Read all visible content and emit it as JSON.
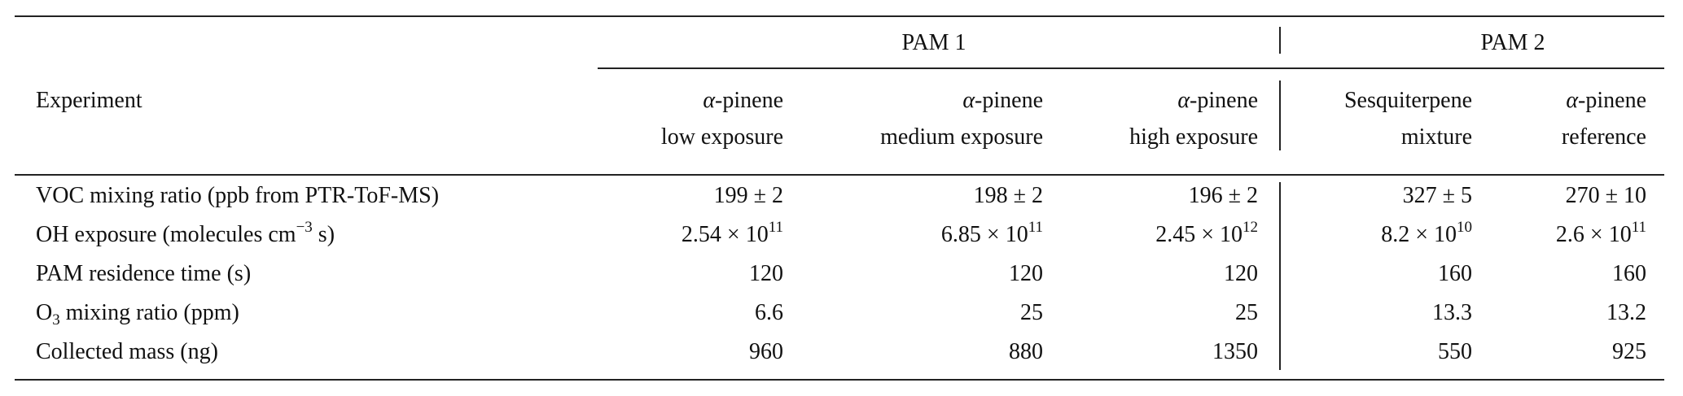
{
  "table": {
    "groups": [
      {
        "label": "PAM 1"
      },
      {
        "label": "PAM 2"
      }
    ],
    "stub_header": "Experiment",
    "columns": [
      {
        "greek": "α",
        "line1": "-pinene",
        "line2": "low exposure"
      },
      {
        "greek": "α",
        "line1": "-pinene",
        "line2": "medium exposure"
      },
      {
        "greek": "α",
        "line1": "-pinene",
        "line2": "high exposure"
      },
      {
        "greek": "",
        "line1": "Sesquiterpene",
        "line2": "mixture"
      },
      {
        "greek": "α",
        "line1": "-pinene",
        "line2": "reference"
      }
    ],
    "rows": [
      {
        "label": "VOC mixing ratio (ppb from PTR-ToF-MS)",
        "values": [
          "199 ± 2",
          "198 ± 2",
          "196 ± 2",
          "327 ± 5",
          "270 ± 10"
        ]
      },
      {
        "label": "OH exposure (molecules cm",
        "label_sup": "−3",
        "label_tail": " s)",
        "values": [
          {
            "m": "2.54 × 10",
            "e": "11"
          },
          {
            "m": "6.85 × 10",
            "e": "11"
          },
          {
            "m": "2.45 × 10",
            "e": "12"
          },
          {
            "m": "8.2 × 10",
            "e": "10"
          },
          {
            "m": "2.6 × 10",
            "e": "11"
          }
        ]
      },
      {
        "label": "PAM residence time (s)",
        "values": [
          "120",
          "120",
          "120",
          "160",
          "160"
        ]
      },
      {
        "label": "O",
        "label_sub": "3",
        "label_tail": " mixing ratio (ppm)",
        "values": [
          "6.6",
          "25",
          "25",
          "13.3",
          "13.2"
        ]
      },
      {
        "label": "Collected mass (ng)",
        "values": [
          "960",
          "880",
          "1350",
          "550",
          "925"
        ]
      }
    ]
  }
}
